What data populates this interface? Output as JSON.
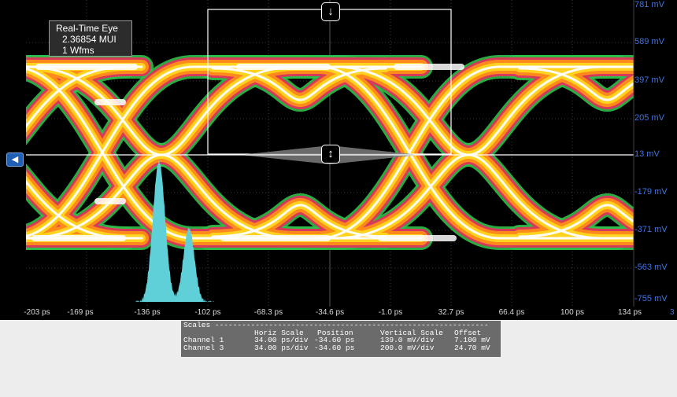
{
  "info_box": {
    "title": "Real-Time Eye",
    "ui_count": "2.36854 MUI",
    "waveforms": "1 Wfms"
  },
  "y_axis_labels": [
    "781 mV",
    "589 mV",
    "397 mV",
    "205 mV",
    "13 mV",
    "-179 mV",
    "-371 mV",
    "-563 mV",
    "-755 mV"
  ],
  "x_axis_labels": [
    "-203 ps",
    "-169 ps",
    "-136 ps",
    "-102 ps",
    "-68.3 ps",
    "-34.6 ps",
    "-1.0 ps",
    "32.7 ps",
    "66.4 ps",
    "100 ps",
    "134 ps"
  ],
  "x_axis_extra": "3",
  "cursor_icons": {
    "top": "arrow-down-icon",
    "middle": "arrow-updown-icon",
    "channel_handle": "channel-marker-icon"
  },
  "scales_panel": {
    "title": "Scales -------------------------------------------------------------",
    "headers": {
      "horiz": "Horiz Scale",
      "position": "Position",
      "vertical": "Vertical Scale",
      "offset": "Offset"
    },
    "rows": [
      {
        "channel": "Channel 1",
        "horiz": "34.00 ps/div",
        "position": "-34.60 ps",
        "vertical": "139.0 mV/div",
        "offset": "7.100 mV"
      },
      {
        "channel": "Channel 3",
        "horiz": "34.00 ps/div",
        "position": "-34.60 ps",
        "vertical": "200.0 mV/div",
        "offset": "24.70 mV"
      }
    ]
  },
  "colors": {
    "axis_label": "#3f74e6",
    "histogram": "#5fd0d8",
    "eye_hot": "#ffffff",
    "eye_warm": "#ffd21f",
    "eye_mid": "#ff8a1c",
    "eye_edge": "#d63a5a",
    "eye_fringe": "#2fbf4a"
  }
}
